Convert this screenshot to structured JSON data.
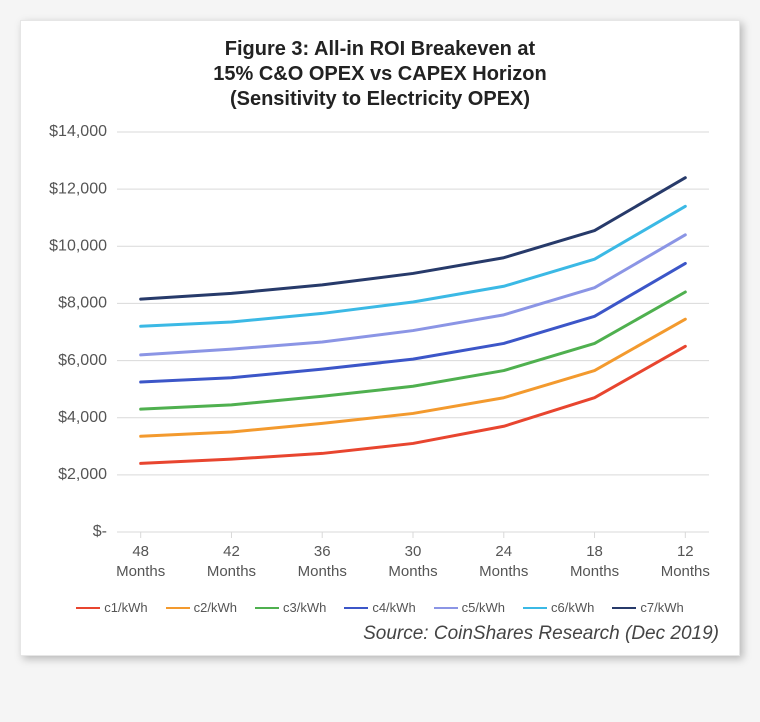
{
  "chart": {
    "type": "line",
    "title_line1": "Figure 3: All-in ROI Breakeven at",
    "title_line2": "15% C&O OPEX vs CAPEX Horizon",
    "title_line3": "(Sensitivity to Electricity OPEX)",
    "title_fontsize": 20,
    "title_color": "#222222",
    "background_color": "#ffffff",
    "grid_color": "#d9d9d9",
    "axis_text_color": "#555555",
    "x_categories": [
      "48",
      "42",
      "36",
      "30",
      "24",
      "18",
      "12"
    ],
    "x_unit": "Months",
    "y_ticks": [
      0,
      2000,
      4000,
      6000,
      8000,
      10000,
      12000,
      14000
    ],
    "y_tick_labels": [
      "$-",
      "$2,000",
      "$4,000",
      "$6,000",
      "$8,000",
      "$10,000",
      "$12,000",
      "$14,000"
    ],
    "ylim": [
      0,
      14000
    ],
    "axis_fontsize": 16,
    "line_width": 3,
    "series": [
      {
        "name": "c1/kWh",
        "color": "#e8452f",
        "values": [
          2400,
          2550,
          2750,
          3100,
          3700,
          4700,
          6500
        ]
      },
      {
        "name": "c2/kWh",
        "color": "#f39a2e",
        "values": [
          3350,
          3500,
          3800,
          4150,
          4700,
          5650,
          7450
        ]
      },
      {
        "name": "c3/kWh",
        "color": "#4fb04f",
        "values": [
          4300,
          4450,
          4750,
          5100,
          5650,
          6600,
          8400
        ]
      },
      {
        "name": "c4/kWh",
        "color": "#3c56c8",
        "values": [
          5250,
          5400,
          5700,
          6050,
          6600,
          7550,
          9400
        ]
      },
      {
        "name": "c5/kWh",
        "color": "#8b95e5",
        "values": [
          6200,
          6400,
          6650,
          7050,
          7600,
          8550,
          10400
        ]
      },
      {
        "name": "c6/kWh",
        "color": "#3bb9e5",
        "values": [
          7200,
          7350,
          7650,
          8050,
          8600,
          9550,
          11400
        ]
      },
      {
        "name": "c7/kWh",
        "color": "#273a6a",
        "values": [
          8150,
          8350,
          8650,
          9050,
          9600,
          10550,
          12400
        ]
      }
    ],
    "legend_fontsize": 13,
    "source_text": "Source: CoinShares Research (Dec 2019)",
    "source_fontsize": 19
  }
}
